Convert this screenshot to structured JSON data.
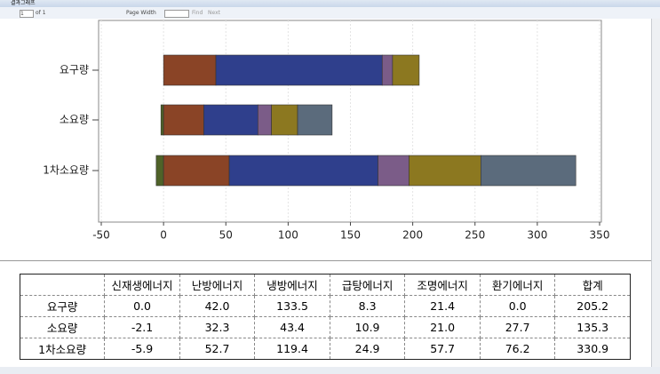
{
  "window_title": "결과그래프",
  "toolbar": {
    "page": "1",
    "of": "of 1",
    "zoom": "Page Width",
    "find": "Find",
    "next": "Next"
  },
  "chart_data": {
    "type": "bar",
    "orientation": "horizontal",
    "stacked": true,
    "categories": [
      "요구량",
      "소요량",
      "1차소요량"
    ],
    "series": [
      {
        "name": "신재생에너지",
        "color": "#4f6228",
        "values": [
          0.0,
          -2.1,
          -5.9
        ]
      },
      {
        "name": "난방에너지",
        "color": "#8a4426",
        "values": [
          42.0,
          32.3,
          52.7
        ]
      },
      {
        "name": "냉방에너지",
        "color": "#2f3f8c",
        "values": [
          133.5,
          43.4,
          119.4
        ]
      },
      {
        "name": "급탕에너지",
        "color": "#7b5c88",
        "values": [
          8.3,
          10.9,
          24.9
        ]
      },
      {
        "name": "조명에너지",
        "color": "#8c7820",
        "values": [
          21.4,
          21.0,
          57.7
        ]
      },
      {
        "name": "환기에너지",
        "color": "#5b6b7c",
        "values": [
          0.0,
          27.7,
          76.2
        ]
      }
    ],
    "xlim": [
      -50,
      350
    ],
    "xticks": [
      -50,
      0,
      50,
      100,
      150,
      200,
      250,
      300,
      350
    ],
    "grid": true
  },
  "table": {
    "header": [
      "신재생에너지",
      "난방에너지",
      "냉방에너지",
      "급탕에너지",
      "조명에너지",
      "환기에너지",
      "합계"
    ],
    "rows": [
      [
        "요구량",
        "0.0",
        "42.0",
        "133.5",
        "8.3",
        "21.4",
        "0.0",
        "205.2"
      ],
      [
        "소요량",
        "-2.1",
        "32.3",
        "43.4",
        "10.9",
        "21.0",
        "27.7",
        "135.3"
      ],
      [
        "1차소요량",
        "-5.9",
        "52.7",
        "119.4",
        "24.9",
        "57.7",
        "76.2",
        "330.9"
      ]
    ]
  }
}
